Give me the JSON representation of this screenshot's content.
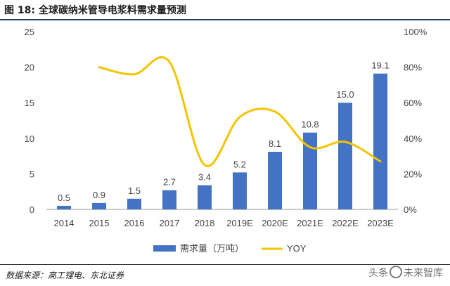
{
  "figure": {
    "title": "图 18: 全球碳纳米管导电浆料需求量预测",
    "source": "数据来源：高工锂电、东北证券",
    "watermark_prefix": "头条",
    "watermark_suffix": "未来智库"
  },
  "chart_data": {
    "type": "bar",
    "categories": [
      "2014",
      "2015",
      "2016",
      "2017",
      "2018",
      "2019E",
      "2020E",
      "2021E",
      "2022E",
      "2023E"
    ],
    "series": [
      {
        "name": "需求量（万吨）",
        "type": "bar",
        "axis": "left",
        "color": "#4472c4",
        "values": [
          0.5,
          0.9,
          1.5,
          2.7,
          3.4,
          5.2,
          8.1,
          10.8,
          15.0,
          19.1
        ],
        "data_labels": [
          "0.5",
          "0.9",
          "1.5",
          "2.7",
          "3.4",
          "5.2",
          "8.1",
          "10.8",
          "15.0",
          "19.1"
        ]
      },
      {
        "name": "YOY",
        "type": "line",
        "axis": "right",
        "color": "#f5c400",
        "values": [
          null,
          0.8,
          0.76,
          0.83,
          0.25,
          0.52,
          0.55,
          0.35,
          0.38,
          0.27
        ]
      }
    ],
    "y_left": {
      "ylim": [
        0,
        25
      ],
      "ticks": [
        0,
        5,
        10,
        15,
        20,
        25
      ],
      "tick_labels": [
        "0",
        "5",
        "10",
        "15",
        "20",
        "25"
      ]
    },
    "y_right": {
      "ylim": [
        0,
        1
      ],
      "ticks": [
        0,
        0.2,
        0.4,
        0.6,
        0.8,
        1.0
      ],
      "tick_labels": [
        "0%",
        "20%",
        "40%",
        "60%",
        "80%",
        "100%"
      ]
    },
    "grid": false,
    "legend_position": "bottom",
    "xlabel": "",
    "ylabel": ""
  }
}
